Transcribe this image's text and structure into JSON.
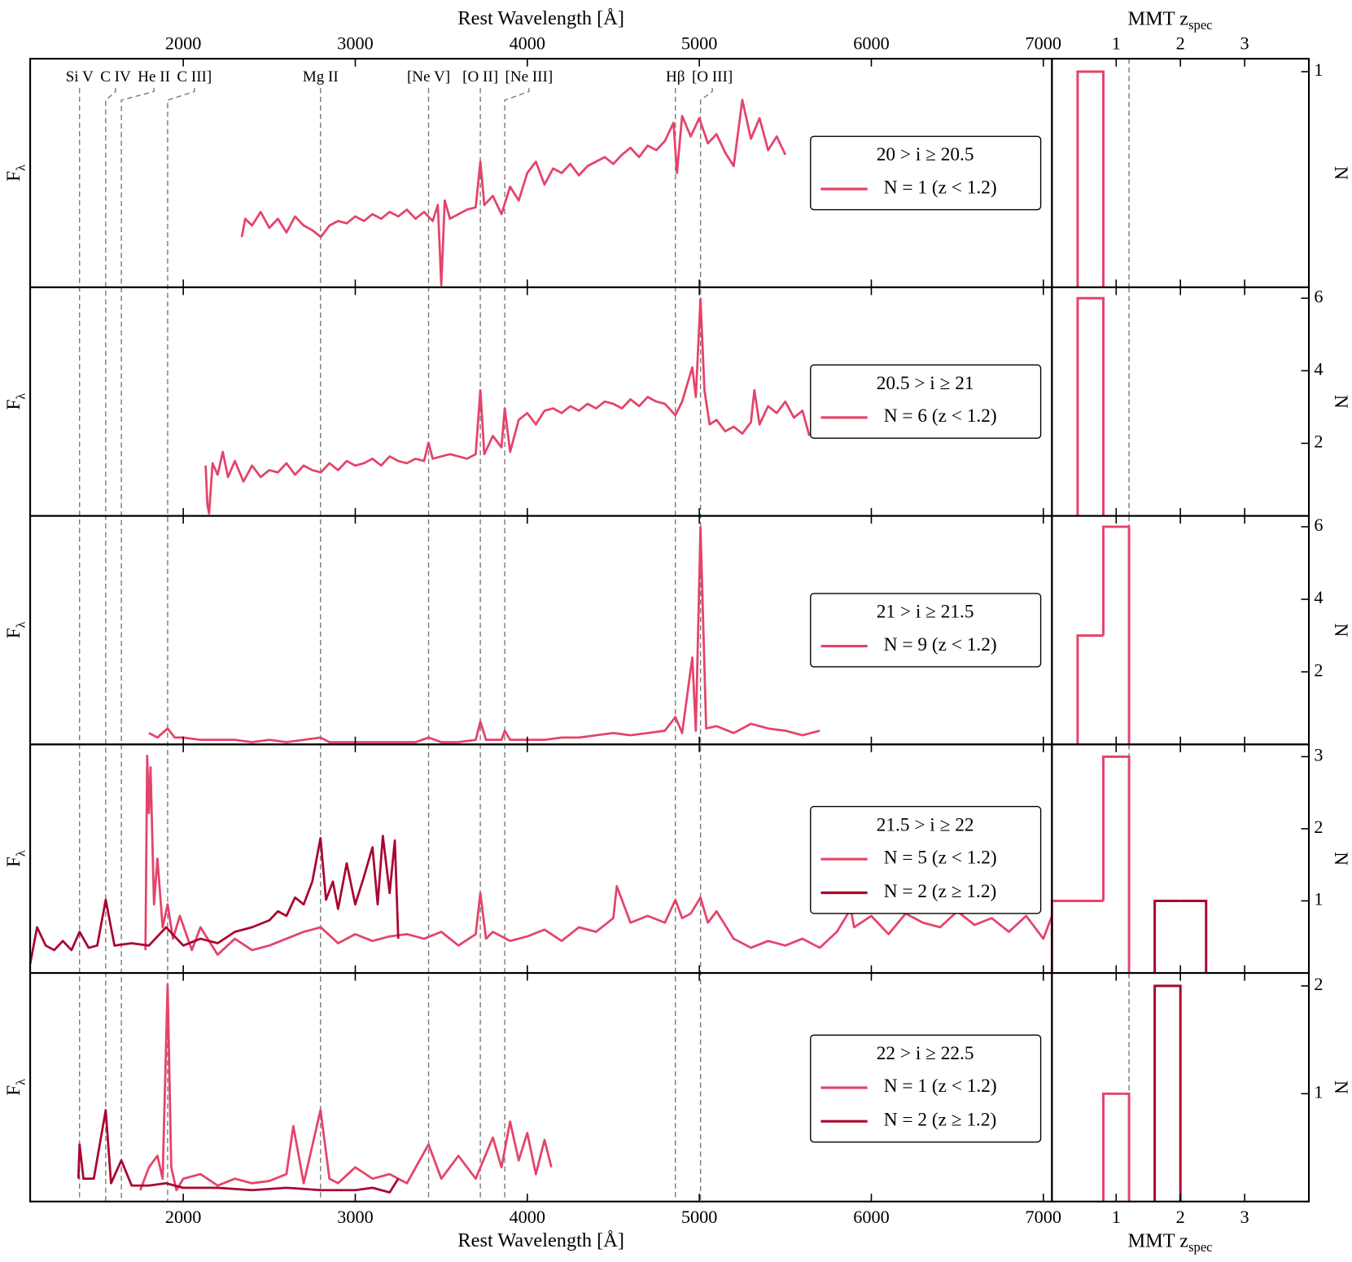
{
  "chart_data": [
    {
      "type": "line",
      "xlabel": "Rest Wavelength [Å]",
      "ylabel": "F",
      "ylabel_sub": "λ",
      "title": "20 > i ≥ 20.5",
      "xlim": [
        1110,
        7050
      ],
      "xticks": [
        2000,
        3000,
        4000,
        5000,
        6000,
        7000
      ],
      "ylim": [
        0,
        1
      ],
      "annotations": [
        {
          "text": "Si V",
          "x": 1397
        },
        {
          "text": "C IV",
          "x": 1549
        },
        {
          "text": "He II",
          "x": 1640
        },
        {
          "text": "C III]",
          "x": 1909
        },
        {
          "text": "Mg II",
          "x": 2798
        },
        {
          "text": "[Ne V]",
          "x": 3426
        },
        {
          "text": "[O II]",
          "x": 3727
        },
        {
          "text": "[Ne III]",
          "x": 3869
        },
        {
          "text": "Hβ",
          "x": 4861
        },
        {
          "text": "[O III]",
          "x": 5007
        }
      ],
      "series": [
        {
          "name": "N = 1 (z < 1.2)",
          "color": "#e5436a",
          "x": [
            2340,
            2360,
            2400,
            2450,
            2500,
            2550,
            2600,
            2650,
            2700,
            2750,
            2800,
            2850,
            2900,
            2950,
            3000,
            3050,
            3100,
            3150,
            3200,
            3250,
            3300,
            3350,
            3400,
            3450,
            3480,
            3500,
            3520,
            3550,
            3600,
            3650,
            3700,
            3727,
            3750,
            3800,
            3850,
            3900,
            3950,
            4000,
            4050,
            4100,
            4150,
            4200,
            4250,
            4300,
            4350,
            4400,
            4450,
            4500,
            4550,
            4600,
            4650,
            4700,
            4750,
            4800,
            4850,
            4870,
            4900,
            4950,
            5000,
            5050,
            5100,
            5150,
            5200,
            5250,
            5300,
            5350,
            5400,
            5450,
            5500
          ],
          "values": [
            0.22,
            0.3,
            0.27,
            0.33,
            0.26,
            0.3,
            0.24,
            0.31,
            0.27,
            0.25,
            0.22,
            0.27,
            0.29,
            0.28,
            0.31,
            0.29,
            0.32,
            0.3,
            0.33,
            0.31,
            0.34,
            0.3,
            0.33,
            0.29,
            0.36,
            0.01,
            0.38,
            0.3,
            0.32,
            0.34,
            0.35,
            0.55,
            0.36,
            0.4,
            0.32,
            0.44,
            0.38,
            0.5,
            0.55,
            0.45,
            0.52,
            0.5,
            0.54,
            0.49,
            0.53,
            0.55,
            0.57,
            0.54,
            0.58,
            0.61,
            0.57,
            0.62,
            0.6,
            0.64,
            0.72,
            0.5,
            0.75,
            0.66,
            0.74,
            0.63,
            0.67,
            0.59,
            0.53,
            0.82,
            0.65,
            0.74,
            0.6,
            0.66,
            0.58
          ]
        }
      ]
    },
    {
      "type": "histogram",
      "xlabel": "MMT z",
      "xlabel_sub": "spec",
      "ylabel": "N",
      "xlim": [
        0,
        4
      ],
      "xticks": [
        1,
        2,
        3
      ],
      "ylim": [
        0,
        1.06
      ],
      "yticks": [
        1
      ],
      "vline": 1.2,
      "bins": [
        0,
        0.4,
        0.8,
        1.2,
        1.6,
        2.0,
        2.4
      ],
      "series": [
        {
          "color": "#e5436a",
          "values": [
            0,
            1,
            0,
            0,
            0,
            0
          ]
        }
      ]
    },
    {
      "type": "line",
      "ylabel": "F",
      "ylabel_sub": "λ",
      "title": "20.5 > i ≥ 21",
      "xlim": [
        1110,
        7050
      ],
      "xticks": [
        2000,
        3000,
        4000,
        5000,
        6000,
        7000
      ],
      "ylim": [
        0,
        1
      ],
      "series": [
        {
          "name": "N = 6 (z < 1.2)",
          "color": "#e5436a",
          "x": [
            2130,
            2140,
            2150,
            2170,
            2200,
            2230,
            2260,
            2300,
            2350,
            2400,
            2450,
            2500,
            2550,
            2600,
            2650,
            2700,
            2750,
            2800,
            2850,
            2900,
            2950,
            3000,
            3050,
            3100,
            3150,
            3200,
            3250,
            3300,
            3350,
            3400,
            3426,
            3450,
            3500,
            3550,
            3600,
            3650,
            3700,
            3727,
            3750,
            3800,
            3850,
            3869,
            3900,
            3950,
            4000,
            4050,
            4100,
            4150,
            4200,
            4250,
            4300,
            4350,
            4400,
            4450,
            4500,
            4550,
            4600,
            4650,
            4700,
            4750,
            4800,
            4861,
            4900,
            4959,
            4980,
            5007,
            5030,
            5060,
            5100,
            5150,
            5200,
            5250,
            5300,
            5320,
            5350,
            5400,
            5450,
            5500,
            5550,
            5600,
            5640
          ],
          "values": [
            0.22,
            0.05,
            0.01,
            0.23,
            0.18,
            0.28,
            0.17,
            0.24,
            0.15,
            0.22,
            0.17,
            0.2,
            0.19,
            0.23,
            0.18,
            0.22,
            0.2,
            0.19,
            0.23,
            0.2,
            0.24,
            0.22,
            0.23,
            0.25,
            0.22,
            0.26,
            0.24,
            0.23,
            0.25,
            0.24,
            0.32,
            0.25,
            0.26,
            0.27,
            0.26,
            0.25,
            0.27,
            0.55,
            0.27,
            0.35,
            0.3,
            0.47,
            0.28,
            0.42,
            0.45,
            0.4,
            0.46,
            0.47,
            0.45,
            0.48,
            0.46,
            0.49,
            0.47,
            0.5,
            0.49,
            0.47,
            0.51,
            0.48,
            0.52,
            0.5,
            0.49,
            0.44,
            0.5,
            0.65,
            0.52,
            0.95,
            0.55,
            0.4,
            0.42,
            0.37,
            0.39,
            0.36,
            0.41,
            0.55,
            0.4,
            0.48,
            0.45,
            0.5,
            0.43,
            0.46,
            0.35
          ]
        }
      ]
    },
    {
      "type": "histogram",
      "ylabel": "N",
      "xlim": [
        0,
        4
      ],
      "xticks": [
        1,
        2,
        3
      ],
      "ylim": [
        0,
        6.3
      ],
      "yticks": [
        2,
        4,
        6
      ],
      "vline": 1.2,
      "bins": [
        0,
        0.4,
        0.8,
        1.2,
        1.6,
        2.0,
        2.4
      ],
      "series": [
        {
          "color": "#e5436a",
          "values": [
            0,
            6,
            0,
            0,
            0,
            0
          ]
        }
      ]
    },
    {
      "type": "line",
      "ylabel": "F",
      "ylabel_sub": "λ",
      "title": "21 > i ≥ 21.5",
      "xlim": [
        1110,
        7050
      ],
      "xticks": [
        2000,
        3000,
        4000,
        5000,
        6000,
        7000
      ],
      "ylim": [
        0,
        1
      ],
      "series": [
        {
          "name": "N = 9 (z < 1.2)",
          "color": "#e5436a",
          "x": [
            1800,
            1850,
            1909,
            1950,
            2000,
            2100,
            2200,
            2300,
            2400,
            2500,
            2600,
            2700,
            2798,
            2850,
            2950,
            3050,
            3150,
            3250,
            3350,
            3426,
            3500,
            3600,
            3700,
            3727,
            3760,
            3850,
            3869,
            3900,
            4000,
            4100,
            4200,
            4300,
            4400,
            4500,
            4600,
            4700,
            4800,
            4861,
            4900,
            4959,
            4980,
            5007,
            5040,
            5100,
            5200,
            5300,
            5400,
            5500,
            5600,
            5700
          ],
          "values": [
            0.05,
            0.03,
            0.07,
            0.03,
            0.03,
            0.02,
            0.02,
            0.02,
            0.01,
            0.02,
            0.01,
            0.02,
            0.03,
            0.01,
            0.01,
            0.01,
            0.01,
            0.01,
            0.01,
            0.03,
            0.01,
            0.01,
            0.02,
            0.1,
            0.02,
            0.02,
            0.06,
            0.02,
            0.02,
            0.02,
            0.03,
            0.03,
            0.04,
            0.05,
            0.04,
            0.05,
            0.06,
            0.12,
            0.05,
            0.38,
            0.06,
            0.95,
            0.07,
            0.08,
            0.05,
            0.09,
            0.07,
            0.06,
            0.04,
            0.06
          ]
        }
      ]
    },
    {
      "type": "histogram",
      "ylabel": "N",
      "xlim": [
        0,
        4
      ],
      "xticks": [
        1,
        2,
        3
      ],
      "ylim": [
        0,
        6.3
      ],
      "yticks": [
        2,
        4,
        6
      ],
      "vline": 1.2,
      "bins": [
        0,
        0.4,
        0.8,
        1.2,
        1.6,
        2.0,
        2.4
      ],
      "series": [
        {
          "color": "#e5436a",
          "values": [
            0,
            3,
            6,
            0,
            0,
            0
          ]
        }
      ]
    },
    {
      "type": "line",
      "ylabel": "F",
      "ylabel_sub": "λ",
      "title": "21.5 > i ≥ 22",
      "xlim": [
        1110,
        7050
      ],
      "xticks": [
        2000,
        3000,
        4000,
        5000,
        6000,
        7000
      ],
      "ylim": [
        0,
        1
      ],
      "series": [
        {
          "name": "N = 5 (z < 1.2)",
          "color": "#e5436a",
          "x": [
            1780,
            1790,
            1800,
            1810,
            1830,
            1850,
            1880,
            1909,
            1940,
            1980,
            2050,
            2100,
            2200,
            2300,
            2400,
            2500,
            2600,
            2700,
            2800,
            2900,
            3000,
            3100,
            3200,
            3300,
            3400,
            3500,
            3600,
            3700,
            3727,
            3760,
            3800,
            3900,
            4000,
            4100,
            4200,
            4300,
            4400,
            4500,
            4520,
            4600,
            4700,
            4800,
            4861,
            4900,
            4950,
            5007,
            5050,
            5100,
            5200,
            5300,
            5400,
            5500,
            5600,
            5700,
            5800,
            5880,
            5900,
            6000,
            6100,
            6200,
            6300,
            6400,
            6500,
            6600,
            6700,
            6800,
            6900,
            7000,
            7050
          ],
          "values": [
            0.1,
            0.95,
            0.7,
            0.9,
            0.3,
            0.5,
            0.2,
            0.3,
            0.15,
            0.25,
            0.1,
            0.2,
            0.08,
            0.15,
            0.1,
            0.12,
            0.15,
            0.18,
            0.2,
            0.13,
            0.17,
            0.14,
            0.16,
            0.17,
            0.15,
            0.18,
            0.12,
            0.17,
            0.35,
            0.15,
            0.18,
            0.14,
            0.16,
            0.19,
            0.14,
            0.2,
            0.18,
            0.24,
            0.38,
            0.22,
            0.25,
            0.22,
            0.32,
            0.24,
            0.26,
            0.33,
            0.22,
            0.27,
            0.15,
            0.11,
            0.14,
            0.12,
            0.15,
            0.11,
            0.18,
            0.28,
            0.2,
            0.25,
            0.17,
            0.26,
            0.22,
            0.2,
            0.27,
            0.21,
            0.24,
            0.18,
            0.25,
            0.15,
            0.25
          ]
        },
        {
          "name": "N = 2 (z ≥ 1.2)",
          "color": "#a8062f",
          "x": [
            1110,
            1150,
            1200,
            1250,
            1300,
            1350,
            1397,
            1450,
            1500,
            1549,
            1600,
            1700,
            1800,
            1900,
            2000,
            2100,
            2200,
            2300,
            2400,
            2500,
            2550,
            2600,
            2650,
            2700,
            2750,
            2798,
            2830,
            2870,
            2900,
            2950,
            3000,
            3050,
            3100,
            3130,
            3160,
            3200,
            3230,
            3250
          ],
          "values": [
            0.04,
            0.2,
            0.12,
            0.1,
            0.14,
            0.1,
            0.18,
            0.11,
            0.12,
            0.32,
            0.12,
            0.13,
            0.12,
            0.2,
            0.12,
            0.15,
            0.13,
            0.18,
            0.2,
            0.23,
            0.27,
            0.25,
            0.33,
            0.3,
            0.4,
            0.59,
            0.32,
            0.4,
            0.28,
            0.48,
            0.3,
            0.42,
            0.55,
            0.3,
            0.6,
            0.35,
            0.58,
            0.15
          ]
        }
      ]
    },
    {
      "type": "histogram",
      "ylabel": "N",
      "xlim": [
        0,
        4
      ],
      "xticks": [
        1,
        2,
        3
      ],
      "ylim": [
        0,
        3.17
      ],
      "yticks": [
        1,
        2,
        3
      ],
      "vline": 1.2,
      "bins": [
        0,
        0.4,
        0.8,
        1.2,
        1.6,
        2.0,
        2.4
      ],
      "series": [
        {
          "color": "#e5436a",
          "values": [
            1,
            1,
            3,
            0,
            0,
            0
          ]
        },
        {
          "color": "#a8062f",
          "values": [
            0,
            0,
            0,
            0,
            1,
            1
          ]
        }
      ]
    },
    {
      "type": "line",
      "xlabel": "Rest Wavelength [Å]",
      "ylabel": "F",
      "ylabel_sub": "λ",
      "title": "22 > i ≥ 22.5",
      "xlim": [
        1110,
        7050
      ],
      "xticks": [
        2000,
        3000,
        4000,
        5000,
        6000,
        7000
      ],
      "ylim": [
        0,
        1
      ],
      "series": [
        {
          "name": "N = 1 (z < 1.2)",
          "color": "#e5436a",
          "x": [
            1750,
            1800,
            1850,
            1880,
            1909,
            1930,
            1960,
            2000,
            2100,
            2200,
            2300,
            2400,
            2500,
            2600,
            2640,
            2700,
            2798,
            2850,
            2900,
            3000,
            3100,
            3200,
            3300,
            3426,
            3500,
            3600,
            3700,
            3800,
            3850,
            3900,
            3950,
            4000,
            4050,
            4100,
            4140
          ],
          "values": [
            0.05,
            0.15,
            0.2,
            0.1,
            0.95,
            0.15,
            0.05,
            0.1,
            0.12,
            0.07,
            0.1,
            0.08,
            0.09,
            0.12,
            0.33,
            0.08,
            0.4,
            0.1,
            0.08,
            0.15,
            0.1,
            0.12,
            0.08,
            0.25,
            0.1,
            0.2,
            0.1,
            0.28,
            0.15,
            0.35,
            0.18,
            0.3,
            0.12,
            0.27,
            0.15
          ]
        },
        {
          "name": "N = 2 (z ≥ 1.2)",
          "color": "#a8062f",
          "x": [
            1390,
            1397,
            1420,
            1480,
            1549,
            1580,
            1640,
            1700,
            1800,
            1900,
            2000,
            2200,
            2400,
            2600,
            2800,
            3000,
            3100,
            3200,
            3250
          ],
          "values": [
            0.1,
            0.25,
            0.1,
            0.1,
            0.4,
            0.08,
            0.18,
            0.07,
            0.07,
            0.08,
            0.06,
            0.06,
            0.05,
            0.06,
            0.05,
            0.05,
            0.06,
            0.04,
            0.1
          ]
        }
      ]
    },
    {
      "type": "histogram",
      "xlabel": "MMT z",
      "xlabel_sub": "spec",
      "ylabel": "N",
      "xlim": [
        0,
        4
      ],
      "xticks": [
        1,
        2,
        3
      ],
      "ylim": [
        0,
        2.12
      ],
      "yticks": [
        1,
        2
      ],
      "vline": 1.2,
      "bins": [
        0,
        0.4,
        0.8,
        1.2,
        1.6,
        2.0,
        2.4
      ],
      "series": [
        {
          "color": "#e5436a",
          "values": [
            0,
            0,
            1,
            0,
            0,
            0
          ]
        },
        {
          "color": "#a8062f",
          "values": [
            0,
            0,
            0,
            0,
            2,
            0
          ]
        }
      ]
    }
  ]
}
